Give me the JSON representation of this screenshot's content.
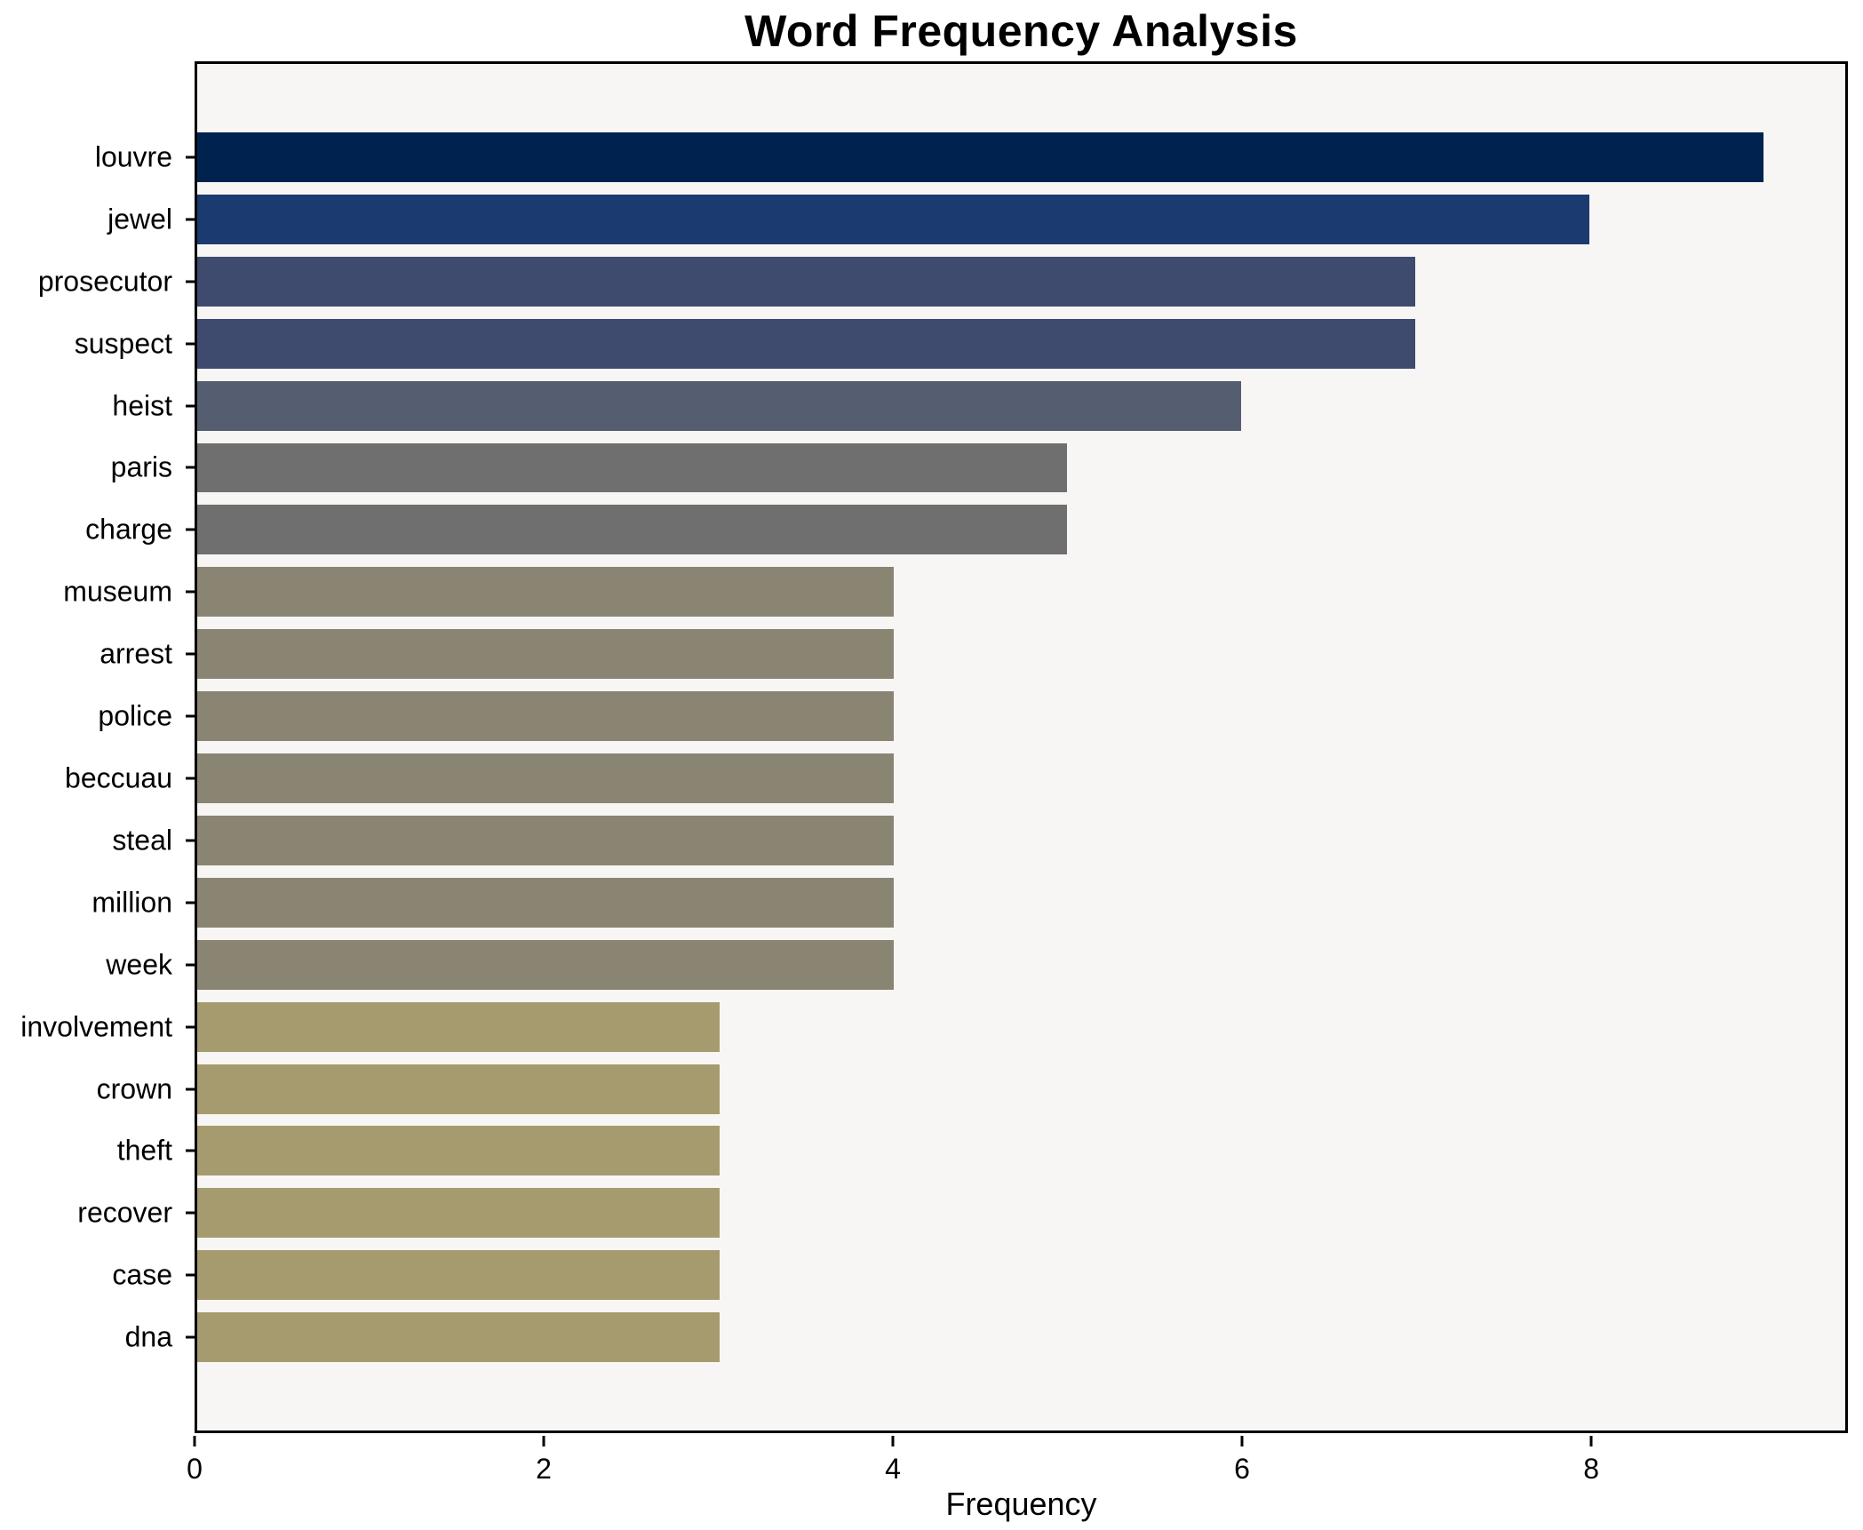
{
  "chart_data": {
    "type": "bar",
    "orientation": "horizontal",
    "title": "Word Frequency Analysis",
    "xlabel": "Frequency",
    "ylabel": "",
    "categories": [
      "louvre",
      "jewel",
      "prosecutor",
      "suspect",
      "heist",
      "paris",
      "charge",
      "museum",
      "arrest",
      "police",
      "beccuau",
      "steal",
      "million",
      "week",
      "involvement",
      "crown",
      "theft",
      "recover",
      "case",
      "dna"
    ],
    "values": [
      9,
      8,
      7,
      7,
      6,
      5,
      5,
      4,
      4,
      4,
      4,
      4,
      4,
      4,
      3,
      3,
      3,
      3,
      3,
      3
    ],
    "bar_colors": [
      "#00224e",
      "#1b3a70",
      "#3e4b6e",
      "#3e4b6e",
      "#555e70",
      "#6f6f6f",
      "#6f6f6f",
      "#8a8473",
      "#8a8473",
      "#8a8473",
      "#8a8473",
      "#8a8473",
      "#8a8473",
      "#8a8473",
      "#a69b6f",
      "#a69b6f",
      "#a69b6f",
      "#a69b6f",
      "#a69b6f",
      "#a69b6f"
    ],
    "xlim": [
      0,
      9.47
    ],
    "x_ticks": [
      0,
      2,
      4,
      6,
      8
    ],
    "grid": false,
    "legend_position": "none",
    "colormap": "cividis",
    "plot_background": "#f7f6f4",
    "figure_background": "#ffffff",
    "spine_color": "#000000"
  }
}
